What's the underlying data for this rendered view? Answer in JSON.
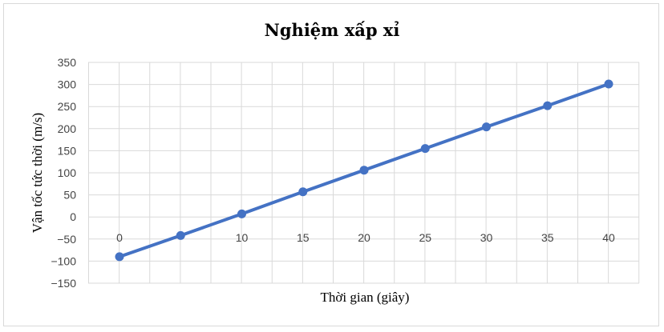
{
  "chart_data": {
    "type": "line",
    "title": "Nghiệm xấp xỉ",
    "xlabel": "Thời gian (giây)",
    "ylabel": "Vận tốc tức thời (m/s)",
    "x": [
      0,
      5,
      10,
      15,
      20,
      25,
      30,
      35,
      40
    ],
    "x_tick_labels": [
      "0",
      "",
      "10",
      "15",
      "20",
      "25",
      "30",
      "35",
      "40"
    ],
    "series": [
      {
        "values": [
          -90,
          -42,
          7,
          57,
          106,
          155,
          204,
          252,
          301
        ]
      }
    ],
    "ylim": [
      -150,
      350
    ],
    "yticks": [
      350,
      300,
      250,
      200,
      150,
      100,
      50,
      0,
      -50,
      -100,
      -150
    ],
    "y_tick_labels": [
      "350",
      "300",
      "250",
      "200",
      "150",
      "100",
      "50",
      "0",
      "−50",
      "−100",
      "−150"
    ],
    "grid": true,
    "colors": {
      "line": "#4472c4",
      "grid": "#d9d9d9"
    }
  }
}
